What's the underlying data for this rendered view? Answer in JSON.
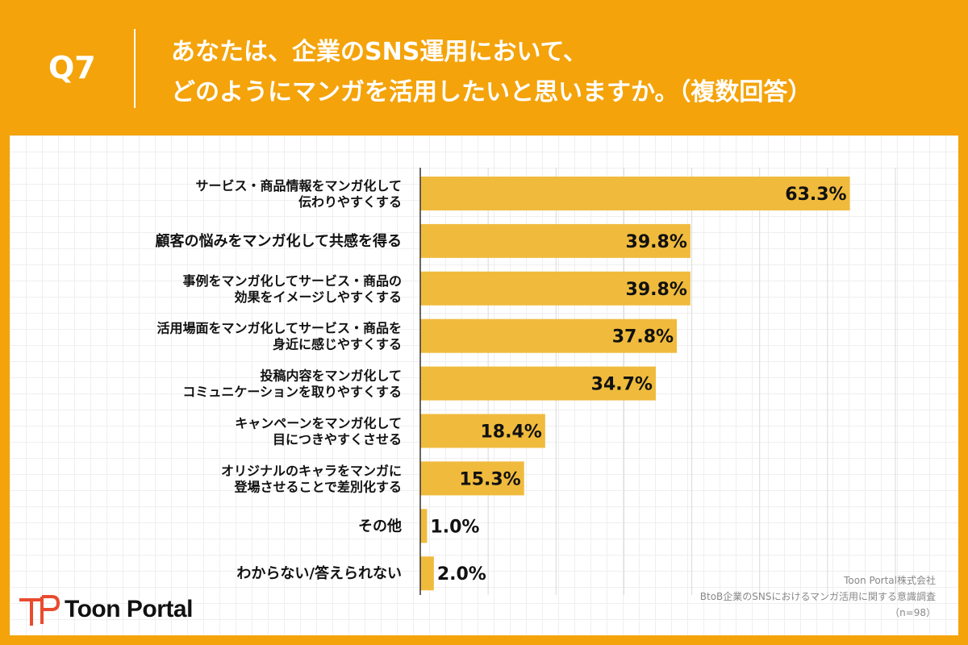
{
  "header": {
    "qnum": "Q7",
    "question": "あなたは、企業のSNS運用において、\nどのようにマンガを活用したいと思いますか。（複数回答）"
  },
  "brand": {
    "name": "Toon Portal"
  },
  "source": {
    "company": "Toon Portal株式会社",
    "survey": "BtoB企業のSNSにおけるマンガ活用に関する意識調査",
    "n": "（n=98）"
  },
  "colors": {
    "background": "#f4a30a",
    "bar": "#f0bb3d",
    "gridline": "#d9d9d9",
    "axis": "#333333"
  },
  "chart_data": {
    "type": "bar",
    "orientation": "horizontal",
    "categories": [
      "サービス・商品情報をマンガ化して\n伝わりやすくする",
      "顧客の悩みをマンガ化して共感を得る",
      "事例をマンガ化してサービス・商品の\n効果をイメージしやすくする",
      "活用場面をマンガ化してサービス・商品を\n身近に感じやすくする",
      "投稿内容をマンガ化して\nコミュニケーションを取りやすくする",
      "キャンペーンをマンガ化して\n目につきやすくさせる",
      "オリジナルのキャラをマンガに\n登場させることで差別化する",
      "その他",
      "わからない/答えられない"
    ],
    "values": [
      63.3,
      39.8,
      39.8,
      37.8,
      34.7,
      18.4,
      15.3,
      1.0,
      2.0
    ],
    "value_labels": [
      "63.3%",
      "39.8%",
      "39.8%",
      "37.8%",
      "34.7%",
      "18.4%",
      "15.3%",
      "1.0%",
      "2.0%"
    ],
    "xlim": [
      0,
      70
    ],
    "grid": true,
    "title": "",
    "xlabel": "",
    "ylabel": ""
  }
}
